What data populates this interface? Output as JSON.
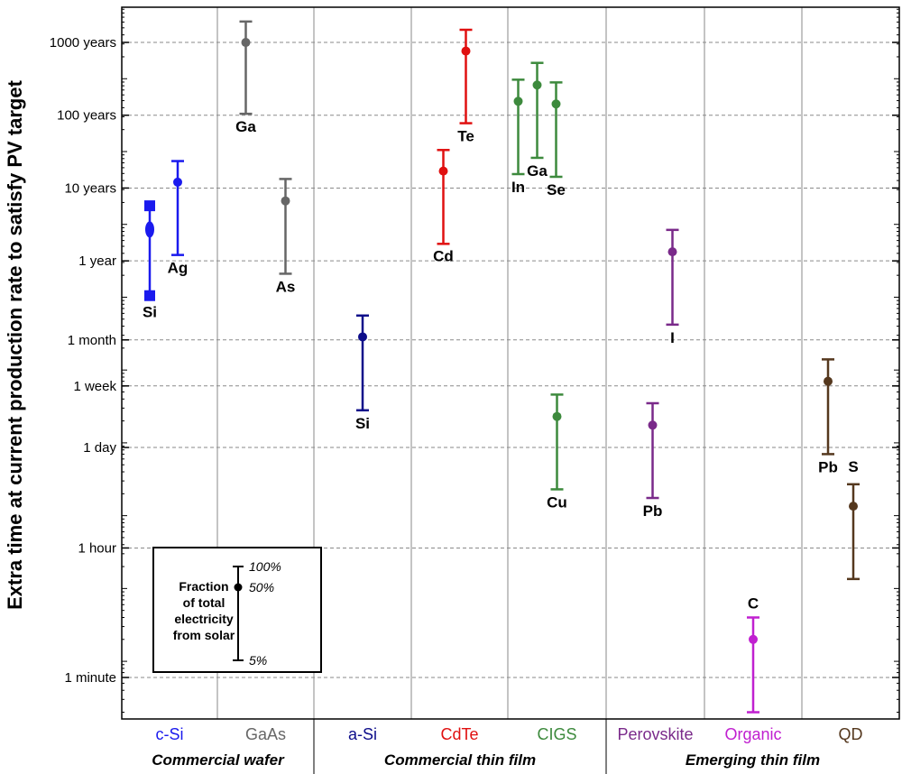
{
  "chart_data": {
    "type": "scatter",
    "title": "",
    "xlabel": "",
    "ylabel": "Extra time at current production rate to satisfy PV target",
    "y_scale": "log",
    "y_unit": "seconds",
    "ylim": [
      11,
      100000000000
    ],
    "y_ticks": [
      {
        "label": "1000 years",
        "value": 31536000000
      },
      {
        "label": "100 years",
        "value": 3153600000
      },
      {
        "label": "10 years",
        "value": 315360000
      },
      {
        "label": "1 year",
        "value": 31536000
      },
      {
        "label": "1 month",
        "value": 2592000
      },
      {
        "label": "1 week",
        "value": 604800
      },
      {
        "label": "1 day",
        "value": 86400
      },
      {
        "label": "1 hour",
        "value": 3600
      },
      {
        "label": "1 minute",
        "value": 60
      }
    ],
    "grid": true,
    "categories": [
      {
        "label": "c-Si",
        "color": "#1a1aee"
      },
      {
        "label": "GaAs",
        "color": "#666666"
      },
      {
        "label": "a-Si",
        "color": "#0d0d8a"
      },
      {
        "label": "CdTe",
        "color": "#e01010"
      },
      {
        "label": "CIGS",
        "color": "#3d8a3d"
      },
      {
        "label": "Perovskite",
        "color": "#7a2a8a"
      },
      {
        "label": "Organic",
        "color": "#c020d0"
      },
      {
        "label": "QD",
        "color": "#55381e"
      }
    ],
    "groups": [
      {
        "label": "Commercial wafer",
        "categories": [
          "c-Si",
          "GaAs"
        ]
      },
      {
        "label": "Commercial thin film",
        "categories": [
          "a-Si",
          "CdTe",
          "CIGS"
        ]
      },
      {
        "label": "Emerging thin film",
        "categories": [
          "Perovskite",
          "Organic",
          "QD"
        ]
      }
    ],
    "points": [
      {
        "category": "c-Si",
        "label": "Si",
        "mid": 85000000,
        "low": 10500000,
        "high": 180000000,
        "marker": "square"
      },
      {
        "category": "c-Si",
        "label": "Ag",
        "mid": 380000000,
        "low": 38000000,
        "high": 740000000,
        "marker": "circle"
      },
      {
        "category": "GaAs",
        "label": "Ga",
        "mid": 31500000000,
        "low": 3300000000,
        "high": 61000000000,
        "marker": "circle"
      },
      {
        "category": "GaAs",
        "label": "As",
        "mid": 210000000,
        "low": 21000000,
        "high": 420000000,
        "marker": "circle"
      },
      {
        "category": "a-Si",
        "label": "Si",
        "mid": 2850000,
        "low": 280000,
        "high": 5600000,
        "marker": "circle"
      },
      {
        "category": "CdTe",
        "label": "Cd",
        "mid": 540000000,
        "low": 54000000,
        "high": 1050000000,
        "marker": "circle"
      },
      {
        "category": "CdTe",
        "label": "Te",
        "mid": 24000000000,
        "low": 2450000000,
        "high": 47000000000,
        "marker": "circle"
      },
      {
        "category": "CIGS",
        "label": "Cu",
        "mid": 230000,
        "low": 23000,
        "high": 460000,
        "marker": "circle"
      },
      {
        "category": "CIGS",
        "label": "In",
        "mid": 4900000000,
        "low": 490000000,
        "high": 9700000000,
        "marker": "circle"
      },
      {
        "category": "CIGS",
        "label": "Ga",
        "mid": 8200000000,
        "low": 820000000,
        "high": 16500000000,
        "marker": "circle"
      },
      {
        "category": "CIGS",
        "label": "Se",
        "mid": 4500000000,
        "low": 450000000,
        "high": 8900000000,
        "marker": "circle"
      },
      {
        "category": "Perovskite",
        "label": "I",
        "mid": 42000000,
        "low": 4200000,
        "high": 84000000,
        "marker": "circle"
      },
      {
        "category": "Perovskite",
        "label": "Pb",
        "mid": 175000,
        "low": 17500,
        "high": 350000,
        "marker": "circle"
      },
      {
        "category": "Organic",
        "label": "C",
        "mid": 200,
        "low": 20,
        "high": 400,
        "marker": "circle"
      },
      {
        "category": "QD",
        "label": "Pb",
        "mid": 700000,
        "low": 70000,
        "high": 1400000,
        "marker": "circle"
      },
      {
        "category": "QD",
        "label": "S",
        "mid": 13500,
        "low": 1350,
        "high": 27000,
        "marker": "circle"
      }
    ],
    "legend": {
      "title_lines": [
        "Fraction",
        "of total",
        "electricity",
        "from solar"
      ],
      "top": "100%",
      "mid": "50%",
      "bottom": "5%",
      "placement": "bottom-left"
    }
  }
}
